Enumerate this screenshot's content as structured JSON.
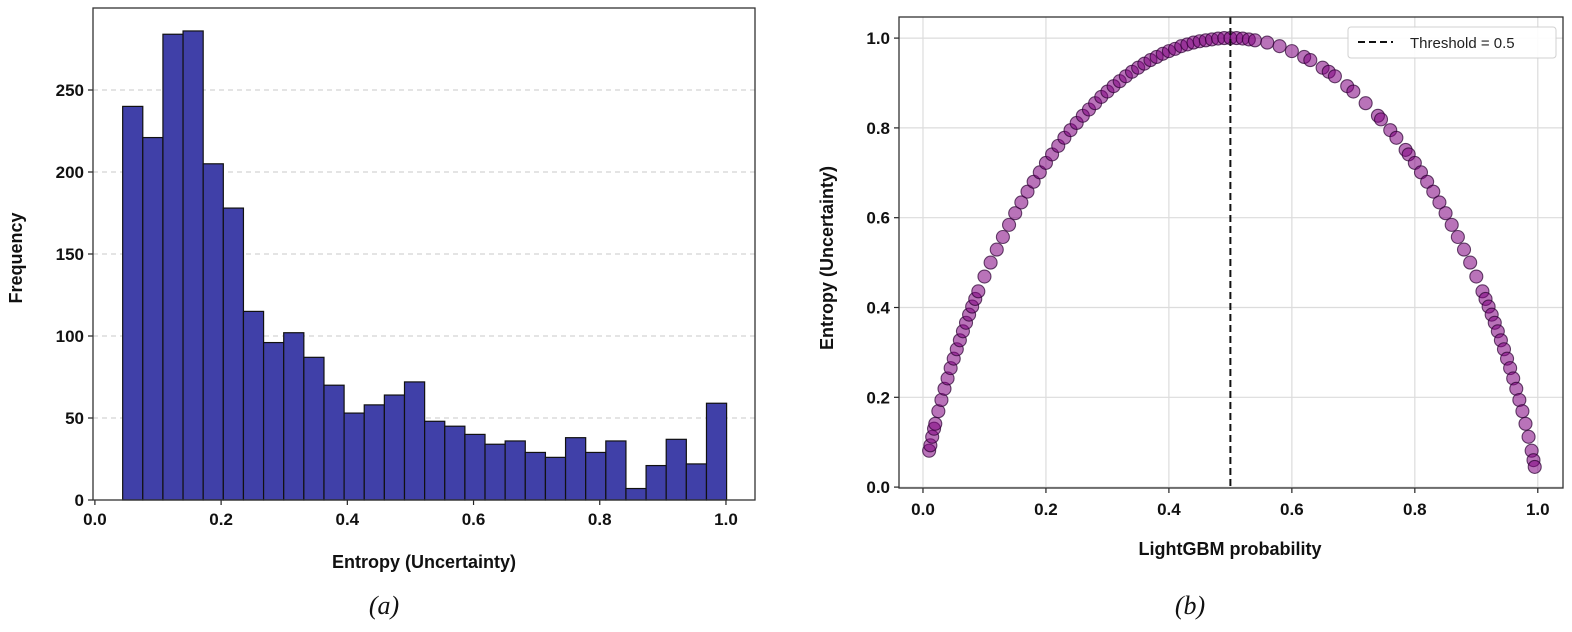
{
  "chart_data": [
    {
      "type": "bar",
      "subtype": "histogram",
      "caption": "(a)",
      "xlabel": "Entropy (Uncertainty)",
      "ylabel": "Frequency",
      "bin_start": 0.044,
      "bin_width": 0.0319,
      "values": [
        240,
        221,
        284,
        286,
        205,
        178,
        115,
        96,
        102,
        87,
        70,
        53,
        58,
        64,
        72,
        48,
        45,
        40,
        34,
        36,
        29,
        26,
        38,
        29,
        36,
        7,
        21,
        37,
        22,
        59
      ],
      "xlim": [
        -0.003,
        1.046
      ],
      "ylim": [
        0,
        300
      ],
      "xticks": [
        "0.0",
        "0.2",
        "0.4",
        "0.6",
        "0.8",
        "1.0"
      ],
      "yticks": [
        "0",
        "50",
        "100",
        "150",
        "200",
        "250"
      ],
      "grid": "horizontal dashed",
      "colors": {
        "bar": "#4040a8",
        "edge": "#111111"
      }
    },
    {
      "type": "scatter",
      "caption": "(b)",
      "xlabel": "LightGBM probability",
      "ylabel": "Entropy (Uncertainty)",
      "xlim": [
        -0.039,
        1.041
      ],
      "ylim": [
        -0.002,
        1.047
      ],
      "xticks": [
        "0.0",
        "0.2",
        "0.4",
        "0.6",
        "0.8",
        "1.0"
      ],
      "yticks": [
        "0.0",
        "0.2",
        "0.4",
        "0.6",
        "0.8",
        "1.0"
      ],
      "grid": "both",
      "legend": {
        "label": "Threshold = 0.5",
        "position": "top-right"
      },
      "threshold": 0.5,
      "colors": {
        "point": "#800080",
        "edge": "#2a0030",
        "threshold": "#111111"
      },
      "points": [
        [
          0.01,
          0.081
        ],
        [
          0.012,
          0.093
        ],
        [
          0.015,
          0.112
        ],
        [
          0.018,
          0.13
        ],
        [
          0.02,
          0.141
        ],
        [
          0.025,
          0.169
        ],
        [
          0.03,
          0.194
        ],
        [
          0.035,
          0.219
        ],
        [
          0.04,
          0.242
        ],
        [
          0.045,
          0.265
        ],
        [
          0.05,
          0.286
        ],
        [
          0.055,
          0.307
        ],
        [
          0.06,
          0.327
        ],
        [
          0.065,
          0.347
        ],
        [
          0.07,
          0.366
        ],
        [
          0.075,
          0.384
        ],
        [
          0.08,
          0.402
        ],
        [
          0.085,
          0.419
        ],
        [
          0.09,
          0.436
        ],
        [
          0.1,
          0.469
        ],
        [
          0.11,
          0.5
        ],
        [
          0.12,
          0.529
        ],
        [
          0.13,
          0.557
        ],
        [
          0.14,
          0.584
        ],
        [
          0.15,
          0.61
        ],
        [
          0.16,
          0.634
        ],
        [
          0.17,
          0.658
        ],
        [
          0.18,
          0.68
        ],
        [
          0.19,
          0.701
        ],
        [
          0.2,
          0.722
        ],
        [
          0.21,
          0.741
        ],
        [
          0.22,
          0.76
        ],
        [
          0.23,
          0.778
        ],
        [
          0.24,
          0.795
        ],
        [
          0.25,
          0.811
        ],
        [
          0.26,
          0.827
        ],
        [
          0.27,
          0.841
        ],
        [
          0.28,
          0.855
        ],
        [
          0.29,
          0.869
        ],
        [
          0.3,
          0.881
        ],
        [
          0.31,
          0.893
        ],
        [
          0.32,
          0.904
        ],
        [
          0.33,
          0.915
        ],
        [
          0.34,
          0.925
        ],
        [
          0.35,
          0.934
        ],
        [
          0.36,
          0.943
        ],
        [
          0.37,
          0.951
        ],
        [
          0.38,
          0.958
        ],
        [
          0.39,
          0.965
        ],
        [
          0.4,
          0.971
        ],
        [
          0.41,
          0.976
        ],
        [
          0.42,
          0.982
        ],
        [
          0.43,
          0.986
        ],
        [
          0.44,
          0.99
        ],
        [
          0.45,
          0.993
        ],
        [
          0.46,
          0.995
        ],
        [
          0.47,
          0.997
        ],
        [
          0.48,
          0.999
        ],
        [
          0.49,
          1.0
        ],
        [
          0.5,
          1.0
        ],
        [
          0.51,
          1.0
        ],
        [
          0.52,
          0.999
        ],
        [
          0.53,
          0.997
        ],
        [
          0.54,
          0.995
        ],
        [
          0.56,
          0.99
        ],
        [
          0.58,
          0.982
        ],
        [
          0.6,
          0.971
        ],
        [
          0.62,
          0.958
        ],
        [
          0.63,
          0.951
        ],
        [
          0.65,
          0.934
        ],
        [
          0.66,
          0.925
        ],
        [
          0.67,
          0.915
        ],
        [
          0.69,
          0.893
        ],
        [
          0.7,
          0.881
        ],
        [
          0.72,
          0.855
        ],
        [
          0.74,
          0.827
        ],
        [
          0.745,
          0.819
        ],
        [
          0.76,
          0.795
        ],
        [
          0.77,
          0.778
        ],
        [
          0.785,
          0.751
        ],
        [
          0.79,
          0.741
        ],
        [
          0.8,
          0.722
        ],
        [
          0.81,
          0.701
        ],
        [
          0.82,
          0.68
        ],
        [
          0.83,
          0.658
        ],
        [
          0.84,
          0.634
        ],
        [
          0.85,
          0.61
        ],
        [
          0.86,
          0.584
        ],
        [
          0.87,
          0.557
        ],
        [
          0.88,
          0.529
        ],
        [
          0.89,
          0.5
        ],
        [
          0.9,
          0.469
        ],
        [
          0.91,
          0.436
        ],
        [
          0.915,
          0.419
        ],
        [
          0.92,
          0.402
        ],
        [
          0.925,
          0.384
        ],
        [
          0.93,
          0.366
        ],
        [
          0.935,
          0.347
        ],
        [
          0.94,
          0.327
        ],
        [
          0.945,
          0.307
        ],
        [
          0.95,
          0.286
        ],
        [
          0.955,
          0.265
        ],
        [
          0.96,
          0.242
        ],
        [
          0.965,
          0.219
        ],
        [
          0.97,
          0.194
        ],
        [
          0.975,
          0.169
        ],
        [
          0.98,
          0.141
        ],
        [
          0.985,
          0.112
        ],
        [
          0.99,
          0.081
        ],
        [
          0.993,
          0.06
        ],
        [
          0.995,
          0.045
        ]
      ]
    }
  ]
}
